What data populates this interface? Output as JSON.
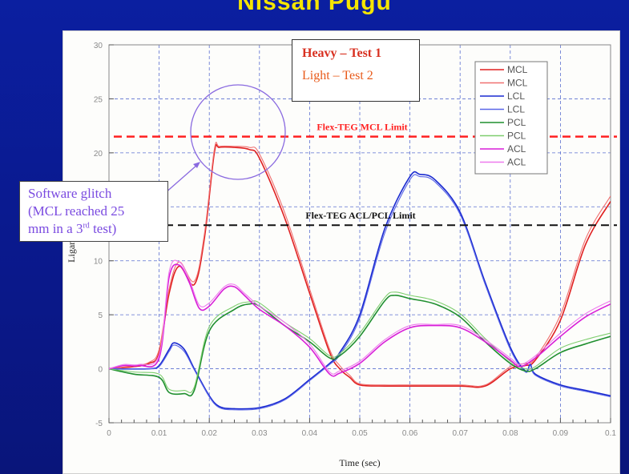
{
  "slide": {
    "title": "Nissan Pugu"
  },
  "annotations": {
    "heavy_label": "Heavy – Test 1",
    "light_label": "Light – Test 2",
    "glitch_line1": "Software glitch",
    "glitch_line2": "(MCL reached 25",
    "glitch_line3_pre": "mm in a 3",
    "glitch_line3_sup": "rd",
    "glitch_line3_post": " test)"
  },
  "chart_data": {
    "type": "line",
    "xlabel": "Time (sec)",
    "ylabel": "Ligament (mm)",
    "xlim": [
      0,
      0.1
    ],
    "ylim": [
      -5,
      30
    ],
    "x_ticks": [
      "0",
      "0.01",
      "0.02",
      "0.03",
      "0.04",
      "0.05",
      "0.06",
      "0.07",
      "0.08",
      "0.09",
      "0.1"
    ],
    "y_ticks": [
      "-5",
      "0",
      "5",
      "10",
      "15",
      "20",
      "25",
      "30"
    ],
    "grid": true,
    "legend_position": "top-right",
    "limits": [
      {
        "label": "Flex-TEG MCL Limit",
        "value": 21.5,
        "color": "#ff2020"
      },
      {
        "label": "Flex-TEG ACL/PCL Limit",
        "value": 13.3,
        "color": "#111111"
      }
    ],
    "series": [
      {
        "name": "MCL",
        "color": "#e02020",
        "x": [
          0,
          0.005,
          0.008,
          0.01,
          0.012,
          0.014,
          0.017,
          0.019,
          0.021,
          0.022,
          0.025,
          0.028,
          0.03,
          0.035,
          0.04,
          0.044,
          0.046,
          0.048,
          0.05,
          0.055,
          0.06,
          0.07,
          0.075,
          0.08,
          0.083,
          0.085,
          0.09,
          0.095,
          0.1
        ],
        "y": [
          0,
          0.2,
          0.5,
          1.5,
          7.0,
          9.5,
          7.8,
          12,
          20.0,
          20.5,
          20.5,
          20.3,
          19.5,
          14,
          7,
          1.5,
          0,
          -0.8,
          -1.5,
          -1.6,
          -1.6,
          -1.6,
          -1.6,
          0,
          0.3,
          0.8,
          4.5,
          11.5,
          15.5
        ]
      },
      {
        "name": "MCL",
        "color": "#f07070",
        "x": [
          0,
          0.005,
          0.008,
          0.01,
          0.012,
          0.014,
          0.017,
          0.019,
          0.021,
          0.022,
          0.025,
          0.028,
          0.03,
          0.035,
          0.04,
          0.044,
          0.046,
          0.048,
          0.05,
          0.055,
          0.06,
          0.07,
          0.075,
          0.08,
          0.083,
          0.085,
          0.09,
          0.095,
          0.1
        ],
        "y": [
          0,
          0.3,
          0.6,
          1.8,
          7.4,
          9.9,
          8.1,
          12.4,
          20.3,
          20.6,
          20.6,
          20.5,
          19.9,
          14.5,
          7.4,
          1.8,
          0.3,
          -0.6,
          -1.4,
          -1.5,
          -1.5,
          -1.5,
          -1.5,
          0.2,
          0.5,
          1.0,
          5.0,
          12.0,
          16.0
        ]
      },
      {
        "name": "LCL",
        "color": "#1a2ad0",
        "x": [
          0,
          0.008,
          0.01,
          0.012,
          0.013,
          0.015,
          0.017,
          0.02,
          0.022,
          0.025,
          0.03,
          0.035,
          0.04,
          0.044,
          0.046,
          0.05,
          0.055,
          0.06,
          0.062,
          0.065,
          0.07,
          0.075,
          0.08,
          0.083,
          0.084,
          0.085,
          0.09,
          0.095,
          0.1
        ],
        "y": [
          0,
          0,
          0.3,
          1.8,
          2.4,
          1.8,
          0,
          -2.5,
          -3.5,
          -3.7,
          -3.6,
          -2.8,
          -1,
          0.5,
          1.5,
          5,
          13,
          17.8,
          18,
          17.5,
          14.5,
          8,
          2,
          -0.2,
          0.4,
          -0.5,
          -1.5,
          -2.0,
          -2.5
        ]
      },
      {
        "name": "LCL",
        "color": "#5a66e8",
        "x": [
          0,
          0.008,
          0.01,
          0.012,
          0.013,
          0.015,
          0.017,
          0.02,
          0.022,
          0.025,
          0.03,
          0.035,
          0.04,
          0.044,
          0.046,
          0.05,
          0.055,
          0.06,
          0.062,
          0.065,
          0.07,
          0.075,
          0.08,
          0.083,
          0.084,
          0.085,
          0.09,
          0.095,
          0.1
        ],
        "y": [
          0,
          0,
          0.2,
          1.6,
          2.2,
          1.6,
          -0.1,
          -2.6,
          -3.6,
          -3.8,
          -3.7,
          -2.9,
          -1.1,
          0.4,
          1.3,
          4.7,
          12.6,
          17.5,
          17.8,
          17.3,
          14.3,
          7.8,
          1.8,
          -0.3,
          0.3,
          -0.6,
          -1.6,
          -2.1,
          -2.6
        ]
      },
      {
        "name": "PCL",
        "color": "#1f8f2f",
        "x": [
          0,
          0.005,
          0.01,
          0.012,
          0.015,
          0.017,
          0.02,
          0.025,
          0.028,
          0.03,
          0.035,
          0.04,
          0.044,
          0.046,
          0.05,
          0.055,
          0.057,
          0.06,
          0.065,
          0.07,
          0.075,
          0.08,
          0.083,
          0.085,
          0.09,
          0.095,
          0.1
        ],
        "y": [
          0,
          -0.5,
          -0.8,
          -2.2,
          -2.3,
          -2.0,
          3.5,
          5.5,
          6.0,
          5.8,
          4.0,
          2.5,
          1.0,
          1.2,
          3.0,
          6.3,
          6.8,
          6.5,
          6.0,
          4.8,
          2.5,
          0.5,
          -0.2,
          0.0,
          1.5,
          2.3,
          3.0
        ]
      },
      {
        "name": "PCL",
        "color": "#7fce6f",
        "x": [
          0,
          0.005,
          0.01,
          0.012,
          0.015,
          0.017,
          0.02,
          0.025,
          0.028,
          0.03,
          0.035,
          0.04,
          0.044,
          0.046,
          0.05,
          0.055,
          0.057,
          0.06,
          0.065,
          0.07,
          0.075,
          0.08,
          0.083,
          0.085,
          0.09,
          0.095,
          0.1
        ],
        "y": [
          0,
          -0.3,
          -0.5,
          -1.9,
          -2.0,
          -1.7,
          3.9,
          5.8,
          6.2,
          6.1,
          4.3,
          2.8,
          1.2,
          1.4,
          3.3,
          6.6,
          7.1,
          6.8,
          6.3,
          5.1,
          2.8,
          0.7,
          0.0,
          0.2,
          1.9,
          2.7,
          3.3
        ]
      },
      {
        "name": "ACL",
        "color": "#d81ed8",
        "x": [
          0,
          0.003,
          0.006,
          0.01,
          0.012,
          0.014,
          0.016,
          0.018,
          0.02,
          0.023,
          0.025,
          0.027,
          0.03,
          0.035,
          0.04,
          0.044,
          0.046,
          0.05,
          0.055,
          0.06,
          0.065,
          0.07,
          0.075,
          0.08,
          0.082,
          0.085,
          0.09,
          0.095,
          0.1
        ],
        "y": [
          0,
          0.3,
          0.3,
          1.0,
          8.5,
          9.6,
          8.0,
          5.6,
          5.8,
          7.4,
          7.6,
          6.8,
          5.5,
          4.0,
          2.0,
          -0.5,
          -0.4,
          0.5,
          2.5,
          3.8,
          4.0,
          3.8,
          2.5,
          0.8,
          0.2,
          1.0,
          3.0,
          4.8,
          6.0
        ]
      },
      {
        "name": "ACL",
        "color": "#ee7aee",
        "x": [
          0,
          0.003,
          0.006,
          0.01,
          0.012,
          0.014,
          0.016,
          0.018,
          0.02,
          0.023,
          0.025,
          0.027,
          0.03,
          0.035,
          0.04,
          0.044,
          0.046,
          0.05,
          0.055,
          0.06,
          0.065,
          0.07,
          0.075,
          0.08,
          0.082,
          0.085,
          0.09,
          0.095,
          0.1
        ],
        "y": [
          0,
          0.4,
          0.4,
          1.3,
          9.0,
          9.9,
          8.3,
          5.9,
          6.1,
          7.6,
          7.8,
          7.0,
          5.8,
          4.3,
          2.3,
          -0.3,
          -0.2,
          0.7,
          2.7,
          4.0,
          4.1,
          4.0,
          2.7,
          1.0,
          0.4,
          1.2,
          3.3,
          5.1,
          6.3
        ]
      }
    ]
  }
}
